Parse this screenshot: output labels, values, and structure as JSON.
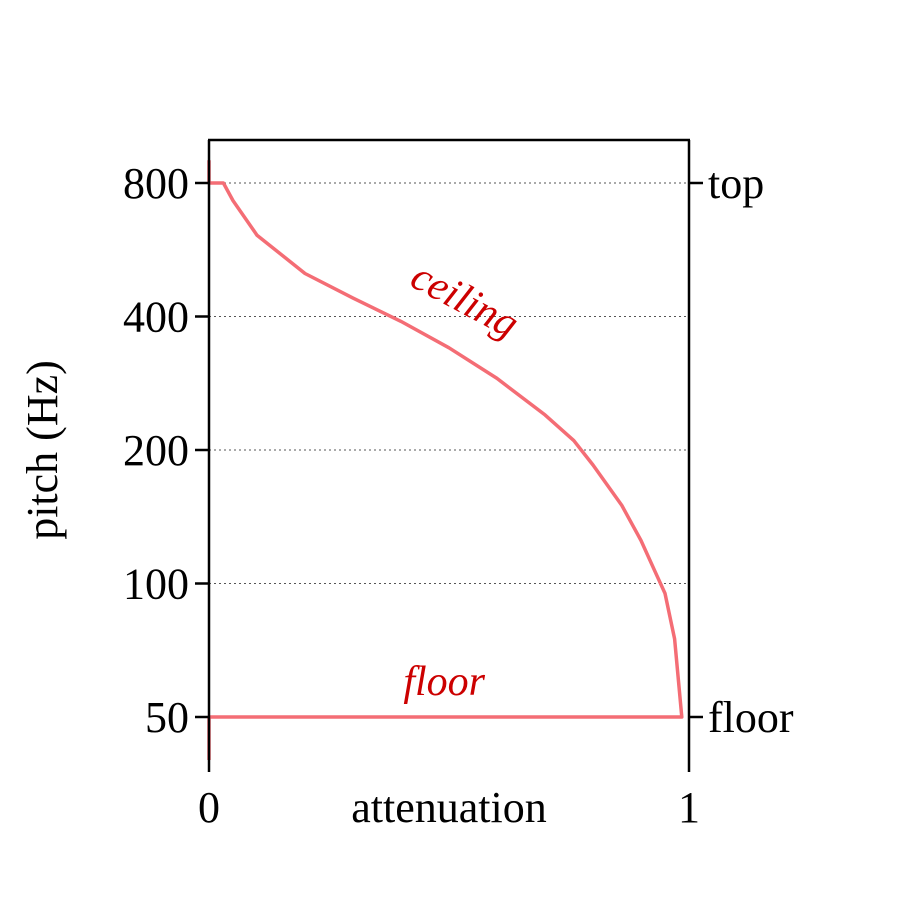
{
  "chart_data": {
    "type": "line",
    "xlabel": "attenuation",
    "ylabel": "pitch (Hz)",
    "xlim": [
      0,
      1
    ],
    "ylim": [
      35,
      900
    ],
    "y_scale": "log",
    "x_ticks": [
      {
        "value": 0,
        "label": "0"
      },
      {
        "value": 1,
        "label": "1"
      }
    ],
    "y_ticks": [
      {
        "value": 50,
        "label": "50"
      },
      {
        "value": 100,
        "label": "100"
      },
      {
        "value": 200,
        "label": "200"
      },
      {
        "value": 400,
        "label": "400"
      },
      {
        "value": 800,
        "label": "800"
      }
    ],
    "gridlines_y": [
      100,
      200,
      400,
      800
    ],
    "right_labels": [
      {
        "value": 800,
        "label": "top"
      },
      {
        "value": 50,
        "label": "floor"
      }
    ],
    "series_color": "#f46d75",
    "annotation_color": "#cc0000",
    "annotations": [
      {
        "text": "ceiling",
        "x": 0.52,
        "y": 410
      },
      {
        "text": "floor",
        "x": 0.49,
        "y": 56
      }
    ],
    "series": [
      {
        "x": [
          0,
          0,
          0.03,
          0.05,
          0.1,
          0.2,
          0.3,
          0.4,
          0.5,
          0.6,
          0.7,
          0.76,
          0.8,
          0.86,
          0.9,
          0.93,
          0.95,
          0.97,
          0.985,
          0.985,
          0,
          0
        ],
        "y": [
          900,
          800,
          800,
          730,
          610,
          500,
          440,
          390,
          340,
          290,
          240,
          210,
          185,
          150,
          125,
          106,
          95,
          75,
          50,
          50,
          50,
          35
        ]
      }
    ]
  }
}
